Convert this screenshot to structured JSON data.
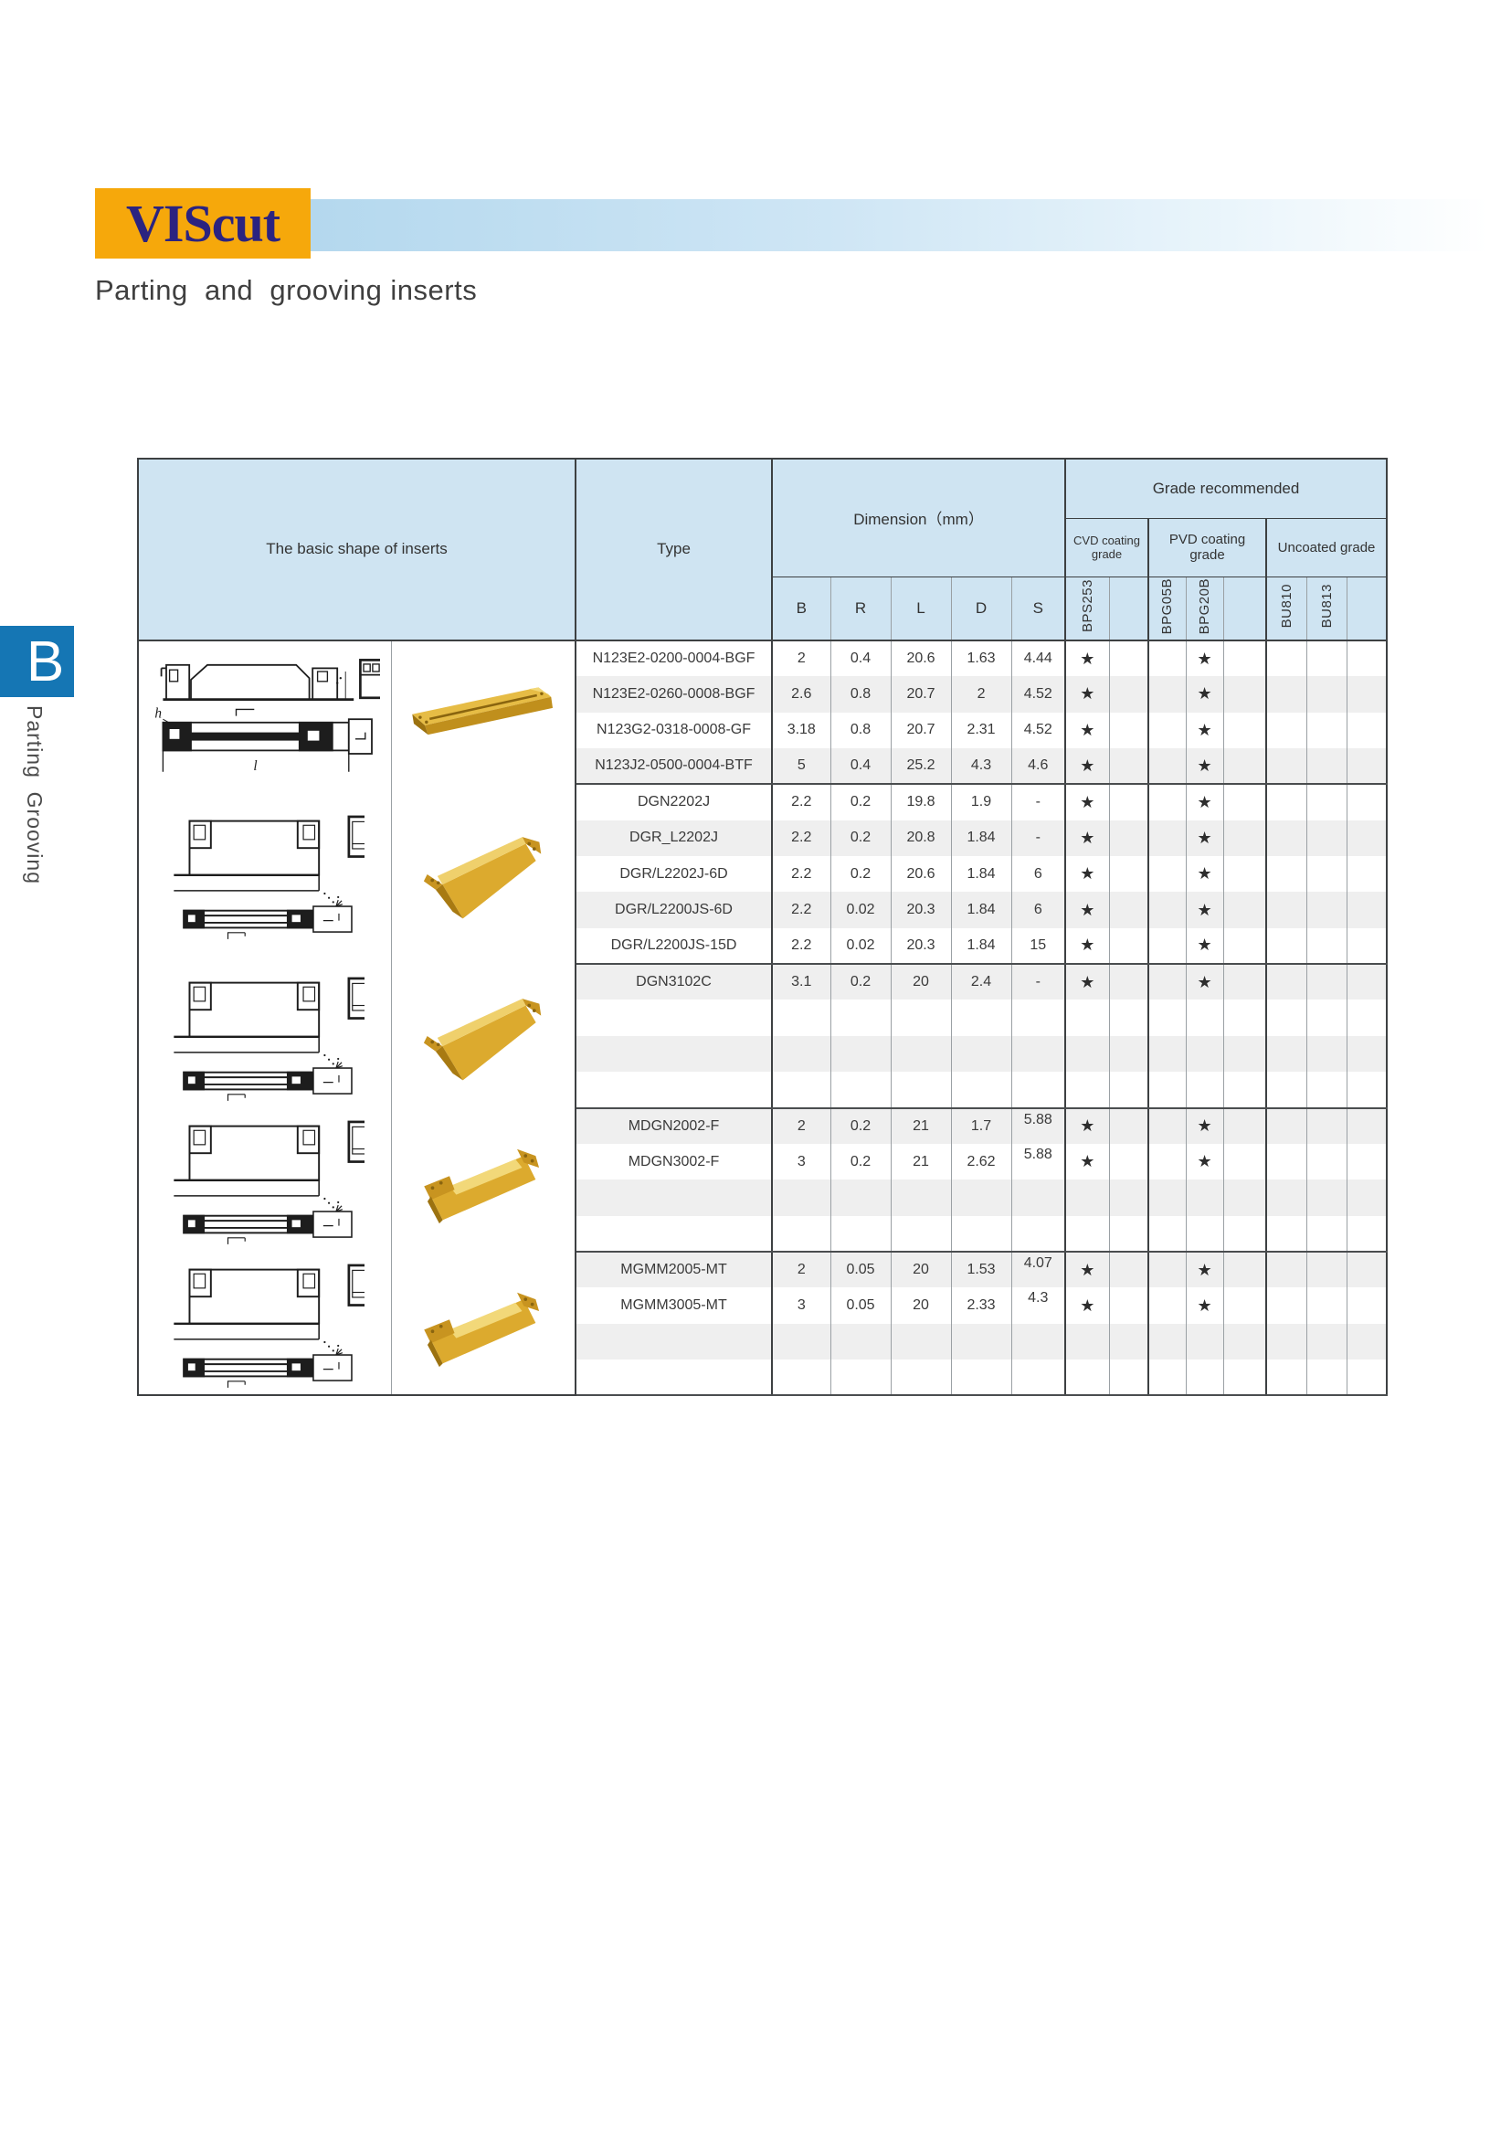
{
  "brand": {
    "logo_text": "VIScut",
    "subtitle": "Parting  and  grooving inserts"
  },
  "sidebar": {
    "tab_letter": "B",
    "vertical_label": "Parting  Grooving"
  },
  "table": {
    "header": {
      "shape_label": "The basic shape of inserts",
      "type_label": "Type",
      "dimension_label": "Dimension（mm）",
      "grade_label": "Grade recommended",
      "dim_columns": [
        "B",
        "R",
        "L",
        "D",
        "S"
      ],
      "grade_groups": [
        {
          "label": "CVD coating grade",
          "columns": [
            "BPS253",
            ""
          ]
        },
        {
          "label": "PVD coating grade",
          "columns": [
            "BPG05B",
            "BPG20B",
            ""
          ]
        },
        {
          "label": "Uncoated grade",
          "columns": [
            "BU810",
            "BU813",
            ""
          ]
        }
      ]
    },
    "star_symbol": "★",
    "sections": [
      {
        "drawing": "n123-drawing",
        "photo": "bar-insert-photo",
        "rows": [
          {
            "type": "N123E2-0200-0004-BGF",
            "dims": [
              "2",
              "0.4",
              "20.6",
              "1.63",
              "4.44"
            ],
            "grades": [
              "★",
              "",
              "",
              "★",
              "",
              "",
              "",
              ""
            ]
          },
          {
            "type": "N123E2-0260-0008-BGF",
            "dims": [
              "2.6",
              "0.8",
              "20.7",
              "2",
              "4.52"
            ],
            "grades": [
              "★",
              "",
              "",
              "★",
              "",
              "",
              "",
              ""
            ]
          },
          {
            "type": "N123G2-0318-0008-GF",
            "dims": [
              "3.18",
              "0.8",
              "20.7",
              "2.31",
              "4.52"
            ],
            "grades": [
              "★",
              "",
              "",
              "★",
              "",
              "",
              "",
              ""
            ]
          },
          {
            "type": "N123J2-0500-0004-BTF",
            "dims": [
              "5",
              "0.4",
              "25.2",
              "4.3",
              "4.6"
            ],
            "grades": [
              "★",
              "",
              "",
              "★",
              "",
              "",
              "",
              ""
            ]
          }
        ]
      },
      {
        "drawing": "dgn-drawing",
        "photo": "wedge-insert-photo",
        "rows": [
          {
            "type": "DGN2202J",
            "dims": [
              "2.2",
              "0.2",
              "19.8",
              "1.9",
              "-"
            ],
            "grades": [
              "★",
              "",
              "",
              "★",
              "",
              "",
              "",
              ""
            ]
          },
          {
            "type": "DGR_L2202J",
            "dims": [
              "2.2",
              "0.2",
              "20.8",
              "1.84",
              "-"
            ],
            "grades": [
              "★",
              "",
              "",
              "★",
              "",
              "",
              "",
              ""
            ]
          },
          {
            "type": "DGR/L2202J-6D",
            "dims": [
              "2.2",
              "0.2",
              "20.6",
              "1.84",
              "6"
            ],
            "grades": [
              "★",
              "",
              "",
              "★",
              "",
              "",
              "",
              ""
            ]
          },
          {
            "type": "DGR/L2200JS-6D",
            "dims": [
              "2.2",
              "0.02",
              "20.3",
              "1.84",
              "6"
            ],
            "grades": [
              "★",
              "",
              "",
              "★",
              "",
              "",
              "",
              ""
            ]
          },
          {
            "type": "DGR/L2200JS-15D",
            "dims": [
              "2.2",
              "0.02",
              "20.3",
              "1.84",
              "15"
            ],
            "grades": [
              "★",
              "",
              "",
              "★",
              "",
              "",
              "",
              ""
            ]
          }
        ]
      },
      {
        "drawing": "dgn-drawing",
        "photo": "wedge-insert-photo",
        "rows": [
          {
            "type": "DGN3102C",
            "dims": [
              "3.1",
              "0.2",
              "20",
              "2.4",
              "-"
            ],
            "grades": [
              "★",
              "",
              "",
              "★",
              "",
              "",
              "",
              ""
            ]
          },
          {
            "type": "",
            "dims": [
              "",
              "",
              "",
              "",
              ""
            ],
            "grades": [
              "",
              "",
              "",
              "",
              "",
              "",
              "",
              ""
            ]
          },
          {
            "type": "",
            "dims": [
              "",
              "",
              "",
              "",
              ""
            ],
            "grades": [
              "",
              "",
              "",
              "",
              "",
              "",
              "",
              ""
            ]
          },
          {
            "type": "",
            "dims": [
              "",
              "",
              "",
              "",
              ""
            ],
            "grades": [
              "",
              "",
              "",
              "",
              "",
              "",
              "",
              ""
            ]
          }
        ]
      },
      {
        "drawing": "dgn-drawing",
        "photo": "block-insert-photo",
        "rows": [
          {
            "type": "MDGN2002-F",
            "dims": [
              "2",
              "0.2",
              "21",
              "1.7",
              "5.88"
            ],
            "s_top": true,
            "grades": [
              "★",
              "",
              "",
              "★",
              "",
              "",
              "",
              ""
            ]
          },
          {
            "type": "MDGN3002-F",
            "dims": [
              "3",
              "0.2",
              "21",
              "2.62",
              "5.88"
            ],
            "s_top": true,
            "grades": [
              "★",
              "",
              "",
              "★",
              "",
              "",
              "",
              ""
            ]
          },
          {
            "type": "",
            "dims": [
              "",
              "",
              "",
              "",
              ""
            ],
            "grades": [
              "",
              "",
              "",
              "",
              "",
              "",
              "",
              ""
            ]
          },
          {
            "type": "",
            "dims": [
              "",
              "",
              "",
              "",
              ""
            ],
            "grades": [
              "",
              "",
              "",
              "",
              "",
              "",
              "",
              ""
            ]
          }
        ]
      },
      {
        "drawing": "dgn-drawing",
        "photo": "block-insert-photo",
        "rows": [
          {
            "type": "MGMM2005-MT",
            "dims": [
              "2",
              "0.05",
              "20",
              "1.53",
              "4.07"
            ],
            "s_top": true,
            "grades": [
              "★",
              "",
              "",
              "★",
              "",
              "",
              "",
              ""
            ]
          },
          {
            "type": "MGMM3005-MT",
            "dims": [
              "3",
              "0.05",
              "20",
              "2.33",
              "4.3"
            ],
            "s_top": true,
            "grades": [
              "★",
              "",
              "",
              "★",
              "",
              "",
              "",
              ""
            ]
          },
          {
            "type": "",
            "dims": [
              "",
              "",
              "",
              "",
              ""
            ],
            "grades": [
              "",
              "",
              "",
              "",
              "",
              "",
              "",
              ""
            ]
          },
          {
            "type": "",
            "dims": [
              "",
              "",
              "",
              "",
              ""
            ],
            "grades": [
              "",
              "",
              "",
              "",
              "",
              "",
              "",
              ""
            ]
          }
        ]
      }
    ]
  },
  "colors": {
    "header_bg": "#cfe4f2",
    "zebra": "#efefef",
    "accent_blue": "#1576b4",
    "logo_bg": "#f6a80b",
    "logo_text": "#2b2380",
    "banner_from": "#b4d8ee"
  }
}
